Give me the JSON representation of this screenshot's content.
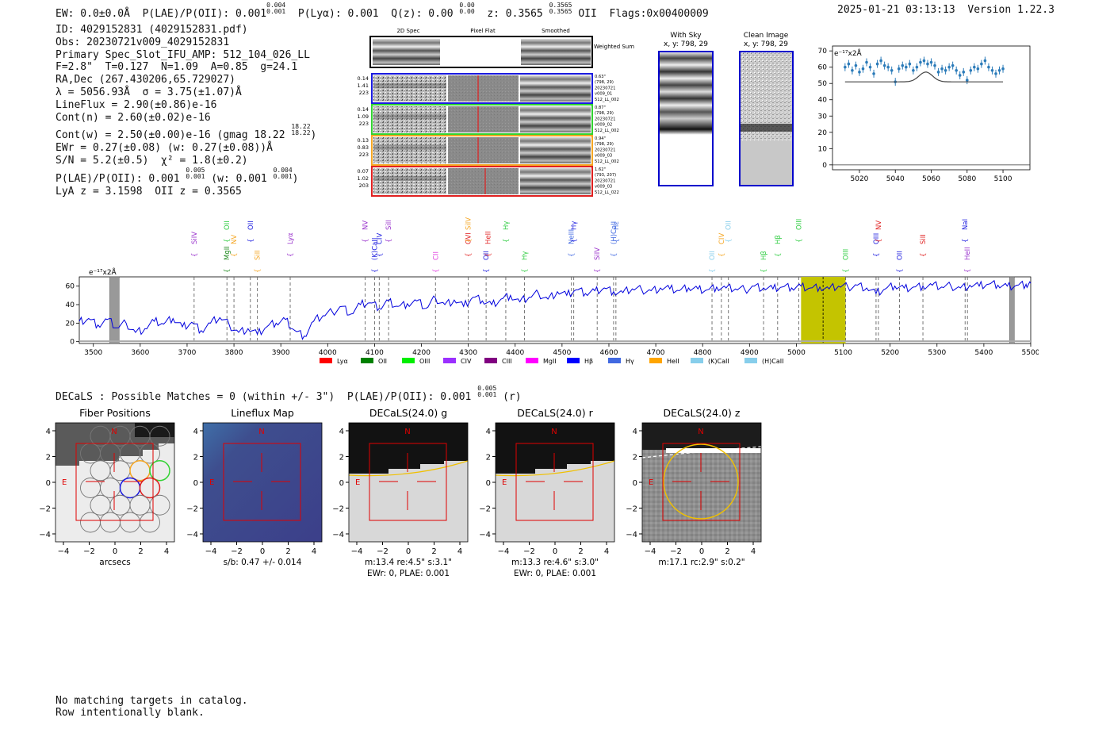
{
  "header": {
    "ew": "EW: 0.0±0.0Å",
    "plae_label": "P(LAE)/P(OII): 0.001",
    "plae_hi": "0.004",
    "plae_lo": "0.001",
    "plya": "P(Lyα): 0.001",
    "qz_label": "Q(z): 0.00",
    "qz_hi": "0.00",
    "qz_lo": "0.00",
    "z_label": "z: 0.3565",
    "z_hi": "0.3565",
    "z_lo": "0.3565",
    "z_line": "OII",
    "flags": "Flags:0x00400009",
    "timestamp": "2025-01-21 03:13:13",
    "version": "Version 1.22.3"
  },
  "info": {
    "id": "ID: 4029152831 (4029152831.pdf)",
    "obs": "Obs: 20230721v009_4029152831",
    "primary": "Primary Spec_Slot_IFU_AMP: 512_104_026_LL",
    "params": "F=2.8\"  T=0.127  N=1.09  A=0.85  g=24.1",
    "radec": "RA,Dec (267.430206,65.729027)",
    "lambda": "λ = 5056.93Å  σ = 3.75(±1.07)Å",
    "lineflux": "LineFlux = 2.90(±0.86)e-16",
    "contn": "Cont(n) = 2.60(±0.02)e-16",
    "contw": "Cont(w) = 2.50(±0.00)e-16 (gmag 18.22",
    "contw_hi": "18.22",
    "contw_lo": "18.22",
    "ewr": "EWr = 0.27(±0.08) (w: 0.27(±0.08))Å",
    "sn": "S/N = 5.2(±0.5)  χ² = 1.8(±0.2)",
    "plae": "P(LAE)/P(OII): 0.001",
    "plae_hi": "0.005",
    "plae_lo": "0.001",
    "plae_w": "(w: 0.001",
    "plae_w_hi": "0.004",
    "plae_w_lo": "0.001",
    "lya": "LyA z = 3.1598  OII z = 0.3565"
  },
  "cutouts": {
    "col_labels": [
      "2D Spec",
      "Pixel Flat",
      "Smoothed"
    ],
    "weighted_label": "Weighted Sum",
    "rows": [
      {
        "left": [
          "0.14",
          "1.41",
          "223"
        ],
        "right": [
          "0.63\"",
          "(798, 29)",
          "20230721",
          "v009_01",
          "512_LL_002"
        ],
        "color": "#1a1adf"
      },
      {
        "left": [
          "0.14",
          "1.09",
          "223"
        ],
        "right": [
          "0.87\"",
          "(798, 29)",
          "20230721",
          "v009_02",
          "512_LL_002"
        ],
        "color": "#32d232"
      },
      {
        "left": [
          "0.13",
          "0.83",
          "223"
        ],
        "right": [
          "0.94\"",
          "(798, 29)",
          "20230721",
          "v009_03",
          "512_LL_002"
        ],
        "color": "#f5a623"
      },
      {
        "left": [
          "0.07",
          "1.02",
          "203"
        ],
        "right": [
          "1.62\"",
          "(793, 207)",
          "20230721",
          "v009_03",
          "512_LL_022"
        ],
        "color": "#e02020"
      }
    ]
  },
  "sky": {
    "with_sky": "With Sky",
    "with_sky_xy": "x, y: 798, 29",
    "clean": "Clean Image",
    "clean_xy": "x, y: 798, 29"
  },
  "zoom_chart": {
    "unit": "e⁻¹⁷x2Å",
    "xticks": [
      "5020",
      "5040",
      "5060",
      "5080",
      "5100"
    ],
    "yticks": [
      "0",
      "10",
      "20",
      "30",
      "40",
      "50",
      "60",
      "70"
    ]
  },
  "chart_data": {
    "type": "line",
    "title": "",
    "ylabel": "e⁻¹⁷x2Å",
    "xlabel": "",
    "xlim": [
      3470,
      5500
    ],
    "ylim": [
      -2,
      70
    ],
    "xticks": [
      3500,
      3600,
      3700,
      3800,
      3900,
      4000,
      4100,
      4200,
      4300,
      4400,
      4500,
      4600,
      4700,
      4800,
      4900,
      5000,
      5100,
      5200,
      5300,
      5400,
      5500
    ],
    "yticks": [
      0,
      20,
      40,
      60
    ],
    "x": [
      3470,
      3490,
      3510,
      3530,
      3550,
      3570,
      3590,
      3610,
      3630,
      3650,
      3670,
      3690,
      3710,
      3730,
      3750,
      3770,
      3790,
      3810,
      3830,
      3850,
      3870,
      3890,
      3910,
      3930,
      3950,
      3970,
      3990,
      4010,
      4030,
      4050,
      4070,
      4090,
      4110,
      4130,
      4150,
      4170,
      4190,
      4210,
      4230,
      4250,
      4270,
      4290,
      4310,
      4330,
      4350,
      4370,
      4390,
      4410,
      4430,
      4450,
      4470,
      4490,
      4510,
      4530,
      4550,
      4570,
      4590,
      4610,
      4630,
      4650,
      4670,
      4690,
      4710,
      4730,
      4750,
      4770,
      4790,
      4810,
      4830,
      4850,
      4870,
      4890,
      4910,
      4930,
      4950,
      4970,
      4990,
      5010,
      5030,
      5050,
      5070,
      5090,
      5110,
      5130,
      5150,
      5170,
      5190,
      5210,
      5230,
      5250,
      5270,
      5290,
      5310,
      5330,
      5350,
      5370,
      5390,
      5410,
      5430,
      5450,
      5470,
      5490,
      5500
    ],
    "y": [
      22,
      25,
      18,
      24,
      15,
      20,
      10,
      14,
      22,
      19,
      25,
      16,
      21,
      12,
      20,
      26,
      18,
      10,
      14,
      8,
      16,
      20,
      24,
      12,
      6,
      22,
      28,
      32,
      38,
      30,
      40,
      42,
      36,
      44,
      38,
      41,
      44,
      36,
      47,
      40,
      45,
      38,
      48,
      44,
      40,
      46,
      50,
      43,
      48,
      52,
      46,
      54,
      50,
      56,
      52,
      55,
      58,
      54,
      53,
      57,
      56,
      55,
      58,
      57,
      55,
      58,
      57,
      56,
      59,
      58,
      57,
      56,
      60,
      58,
      57,
      59,
      58,
      60,
      58,
      59,
      57,
      60,
      59,
      61,
      58,
      52,
      57,
      60,
      58,
      59,
      60,
      61,
      59,
      60,
      58,
      61,
      60,
      62,
      61,
      60,
      61,
      62,
      63
    ],
    "lines": [
      {
        "name": "MgII",
        "wave": 3500,
        "color": "#87ceeb",
        "shown": false
      },
      {
        "name": "SiIV",
        "wave": 3715,
        "color": "#9932cc"
      },
      {
        "name": "OII",
        "wave": 3785,
        "color": "#2ecc40"
      },
      {
        "name": "MgII",
        "wave": 3785,
        "color": "#228b22"
      },
      {
        "name": "NV",
        "wave": 3800,
        "color": "#f5a623"
      },
      {
        "name": "OII",
        "wave": 3835,
        "color": "#1a1adf"
      },
      {
        "name": "SiII",
        "wave": 3850,
        "color": "#f5a623"
      },
      {
        "name": "Lyα",
        "wave": 3920,
        "color": "#9932cc"
      },
      {
        "name": "NV",
        "wave": 4080,
        "color": "#9932cc"
      },
      {
        "name": "(K)CaII",
        "wave": 4100,
        "color": "#1a1adf"
      },
      {
        "name": "CIV",
        "wave": 4110,
        "color": "#1a1adf"
      },
      {
        "name": "SiII",
        "wave": 4130,
        "color": "#9932cc"
      },
      {
        "name": "CII",
        "wave": 4230,
        "color": "#e040e0"
      },
      {
        "name": "OVI",
        "wave": 4300,
        "color": "#e02020"
      },
      {
        "name": "SiIV",
        "wave": 4300,
        "color": "#f5a623"
      },
      {
        "name": "OII",
        "wave": 4338,
        "color": "#1a1adf"
      },
      {
        "name": "HeII",
        "wave": 4342,
        "color": "#e02020"
      },
      {
        "name": "Hγ",
        "wave": 4380,
        "color": "#2ecc40"
      },
      {
        "name": "Hγ",
        "wave": 4420,
        "color": "#2ecc40"
      },
      {
        "name": "NeIII",
        "wave": 4520,
        "color": "#4169e1"
      },
      {
        "name": "Hγ",
        "wave": 4525,
        "color": "#1a1adf"
      },
      {
        "name": "SiIV",
        "wave": 4575,
        "color": "#9932cc"
      },
      {
        "name": "(H)CaII",
        "wave": 4610,
        "color": "#4169e1"
      },
      {
        "name": "Hε",
        "wave": 4615,
        "color": "#4169e1"
      },
      {
        "name": "OII",
        "wave": 4820,
        "color": "#87ceeb"
      },
      {
        "name": "CIV",
        "wave": 4840,
        "color": "#f5a623"
      },
      {
        "name": "OII",
        "wave": 4855,
        "color": "#87ceeb"
      },
      {
        "name": "Hβ",
        "wave": 4930,
        "color": "#2ecc40"
      },
      {
        "name": "Hβ",
        "wave": 4960,
        "color": "#2ecc40"
      },
      {
        "name": "OIII",
        "wave": 5005,
        "color": "#2ecc40"
      },
      {
        "name": "OIII",
        "wave": 5105,
        "color": "#2ecc40"
      },
      {
        "name": "OIII",
        "wave": 5170,
        "color": "#1a1adf"
      },
      {
        "name": "NV",
        "wave": 5175,
        "color": "#e02020"
      },
      {
        "name": "OII",
        "wave": 5220,
        "color": "#1a1adf"
      },
      {
        "name": "SiII",
        "wave": 5270,
        "color": "#e02020"
      },
      {
        "name": "NaI",
        "wave": 5360,
        "color": "#1a1adf"
      },
      {
        "name": "HeII",
        "wave": 5365,
        "color": "#9932cc"
      }
    ],
    "legend": [
      {
        "name": "Lyα",
        "color": "#ff0000"
      },
      {
        "name": "OII",
        "color": "#008000"
      },
      {
        "name": "OIII",
        "color": "#00ee00"
      },
      {
        "name": "CIV",
        "color": "#9b30ff"
      },
      {
        "name": "CIII",
        "color": "#800080"
      },
      {
        "name": "MgII",
        "color": "#ff00ff"
      },
      {
        "name": "Hβ",
        "color": "#0000ff"
      },
      {
        "name": "Hγ",
        "color": "#4169e1"
      },
      {
        "name": "HeII",
        "color": "#ffa500"
      },
      {
        "name": "(K)CaII",
        "color": "#87ceeb"
      },
      {
        "name": "(H)CaII",
        "color": "#87ceeb"
      }
    ],
    "highlight": [
      5010,
      5105
    ],
    "highlight_center": 5057,
    "masked": [
      [
        3535,
        3555
      ],
      [
        5455,
        5465
      ]
    ],
    "unit_label": "e⁻¹⁷x2Å"
  },
  "decals": {
    "line": "DECaLS : Possible Matches = 0 (within +/- 3\")  P(LAE)/P(OII): 0.001",
    "hi": "0.005",
    "lo": "0.001",
    "suffix": "(r)"
  },
  "panels": [
    {
      "title": "Fiber Positions",
      "caption1": "arcsecs",
      "caption2": ""
    },
    {
      "title": "Lineflux Map",
      "caption1": "s/b: 0.47 +/- 0.014",
      "caption2": ""
    },
    {
      "title": "DECaLS(24.0) g",
      "caption1": "m:13.4  re:4.5\"  s:3.1\"",
      "caption2": "EWr: 0, PLAE: 0.001"
    },
    {
      "title": "DECaLS(24.0) r",
      "caption1": "m:13.3  re:4.6\"  s:3.0\"",
      "caption2": "EWr: 0, PLAE: 0.001"
    },
    {
      "title": "DECaLS(24.0) z",
      "caption1": "m:17.1 rc:2.9\"  s:0.2\"",
      "caption2": ""
    }
  ],
  "panel_labels": {
    "north": "N",
    "east": "E",
    "ticks": [
      "4",
      "2",
      "0",
      "−2",
      "−4"
    ],
    "xticks": [
      "−4",
      "−2",
      "0",
      "2",
      "4"
    ]
  },
  "notes": {
    "line1": "No matching targets in catalog.",
    "line2": "Row intentionally blank."
  }
}
